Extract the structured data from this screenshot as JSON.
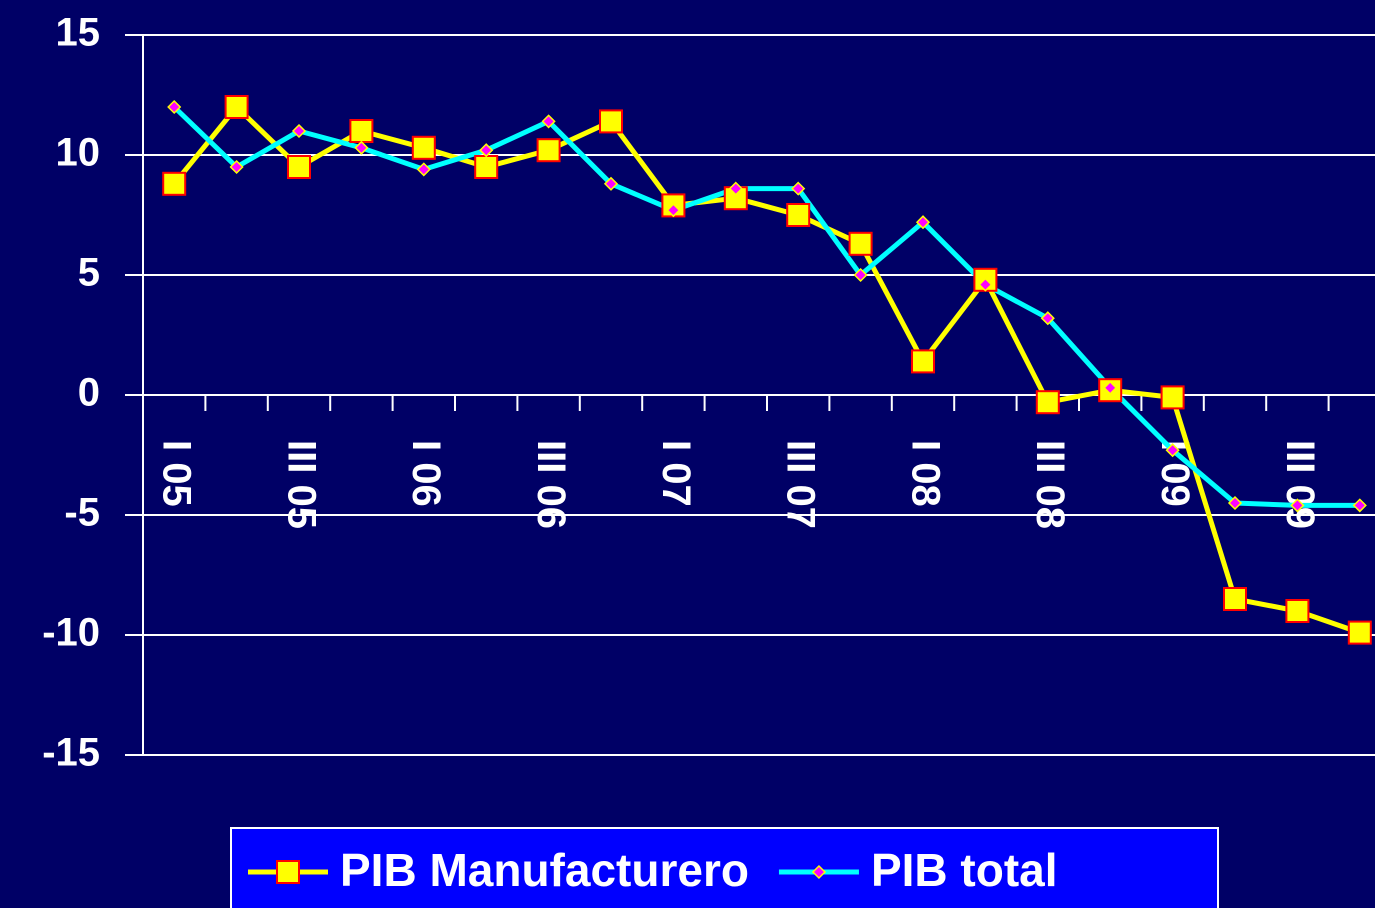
{
  "chart_data": {
    "type": "line",
    "categories": [
      "I 05",
      null,
      "III 05",
      null,
      "I 06",
      null,
      "III 06",
      null,
      "I 07",
      null,
      "III 07",
      null,
      "I 08",
      null,
      "III 08",
      null,
      "I 09",
      null,
      "III 09",
      null
    ],
    "series": [
      {
        "name": "PIB Manufacturero",
        "color": "#ffff00",
        "marker": "square",
        "marker_color": "#ffff00",
        "marker_edge": "#ff0000",
        "values": [
          8.8,
          12.0,
          9.5,
          11.0,
          10.3,
          9.5,
          10.2,
          11.4,
          7.9,
          8.2,
          7.5,
          6.3,
          1.4,
          4.8,
          -0.3,
          0.2,
          -0.1,
          -8.5,
          -9.0,
          -9.9
        ]
      },
      {
        "name": "PIB total",
        "color": "#00ffff",
        "marker": "diamond",
        "marker_color": "#ff00ff",
        "marker_edge": "#ffff00",
        "values": [
          12.0,
          9.5,
          11.0,
          10.3,
          9.4,
          10.2,
          11.4,
          8.8,
          7.7,
          8.6,
          8.6,
          5.0,
          7.2,
          4.6,
          3.2,
          0.3,
          -2.3,
          -4.5,
          -4.6,
          -4.6
        ]
      }
    ],
    "ylim": [
      -15,
      15
    ],
    "yticks": [
      -15,
      -10,
      -5,
      0,
      5,
      10,
      15
    ],
    "grid": true,
    "legend": "bottom"
  }
}
